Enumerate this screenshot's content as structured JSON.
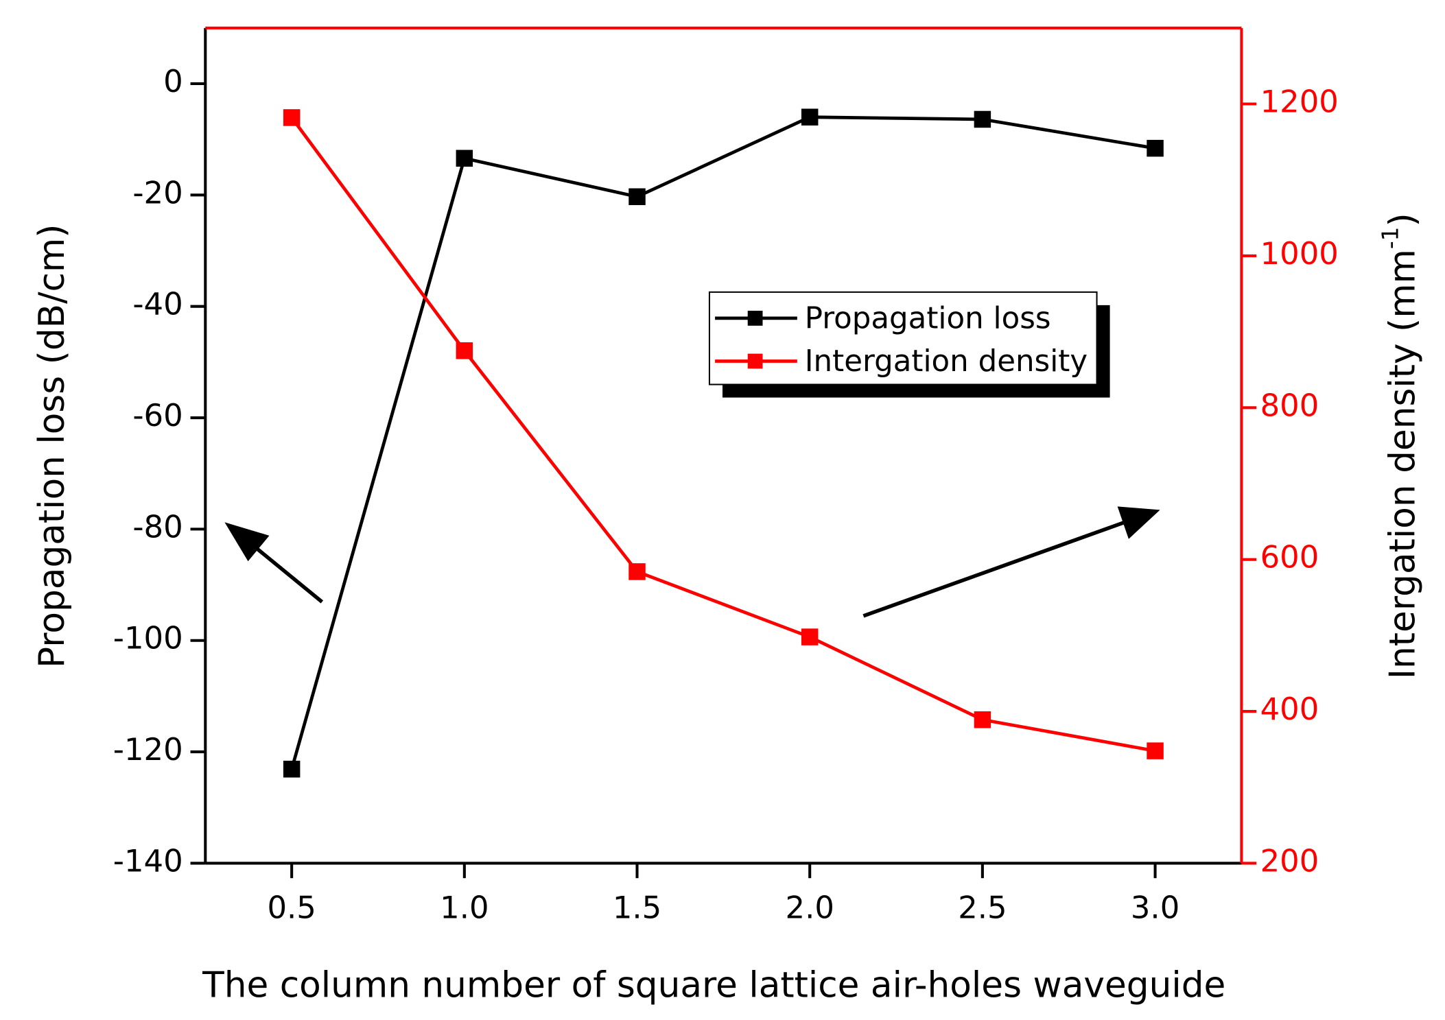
{
  "chart_data": {
    "type": "line",
    "xlabel": "The column number of square lattice air-holes waveguide",
    "ylabel": "Propagation loss (dB/cm)",
    "y2label_parts": [
      "Intergation density (mm",
      "-1",
      ")"
    ],
    "x": [
      0.5,
      1.0,
      1.5,
      2.0,
      2.5,
      3.0
    ],
    "xlim": [
      0.25,
      3.25
    ],
    "xticks": [
      0.5,
      {
        "value": 1,
        "label": "1.0"
      },
      1.5,
      {
        "value": 2,
        "label": "2.0"
      },
      2.5,
      {
        "value": 3,
        "label": "3.0"
      }
    ],
    "ylim": [
      -140,
      10
    ],
    "yticks": [
      -140,
      -120,
      -100,
      -80,
      -60,
      -40,
      -20,
      0
    ],
    "y2lim": [
      200,
      1300
    ],
    "y2ticks": [
      200,
      400,
      600,
      800,
      1000,
      1200
    ],
    "legend": "center-right",
    "series": [
      {
        "name": "Propagation loss",
        "color": "#000000",
        "values": [
          -123.1,
          -13.4,
          -20.3,
          -6.0,
          -6.4,
          -11.6
        ]
      },
      {
        "name": "Intergation density",
        "color": "#ff0000",
        "axis": "y2",
        "values": [
          1182,
          875,
          584,
          498,
          389,
          348
        ]
      }
    ]
  }
}
